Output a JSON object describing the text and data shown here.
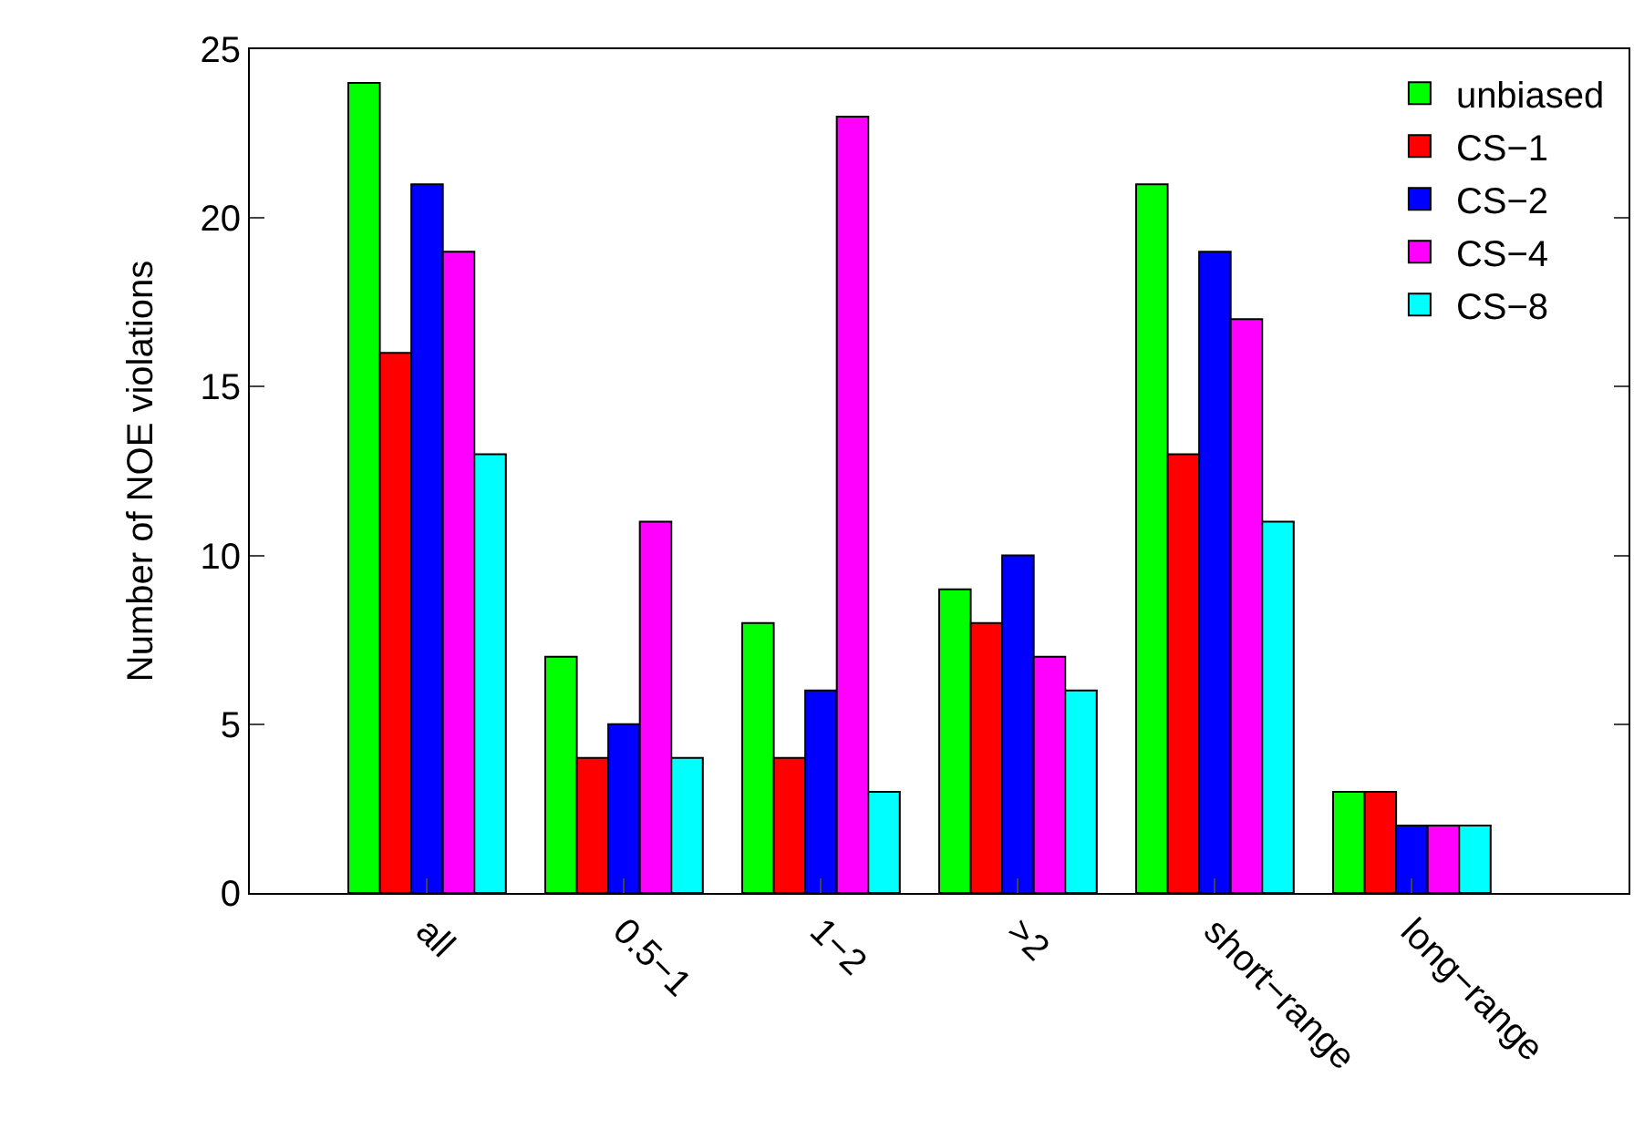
{
  "chart_data": {
    "type": "bar",
    "ylabel": "Number of NOE violations",
    "categories": [
      "all",
      "0.5−1",
      "1−2",
      ">2",
      "short−range",
      "long−range"
    ],
    "series": [
      {
        "name": "unbiased",
        "color": "#00ff00",
        "values": [
          24,
          7,
          8,
          9,
          21,
          3
        ]
      },
      {
        "name": "CS−1",
        "color": "#ff0000",
        "values": [
          16,
          4,
          4,
          8,
          13,
          3
        ]
      },
      {
        "name": "CS−2",
        "color": "#0000ff",
        "values": [
          21,
          5,
          6,
          10,
          19,
          2
        ]
      },
      {
        "name": "CS−4",
        "color": "#ff00ff",
        "values": [
          19,
          11,
          23,
          7,
          17,
          2
        ]
      },
      {
        "name": "CS−8",
        "color": "#00ffff",
        "values": [
          13,
          4,
          3,
          6,
          11,
          2
        ]
      }
    ],
    "ylim": [
      0,
      25
    ],
    "yticks": [
      0,
      5,
      10,
      15,
      20,
      25
    ],
    "grid": false,
    "legend": "top right"
  }
}
